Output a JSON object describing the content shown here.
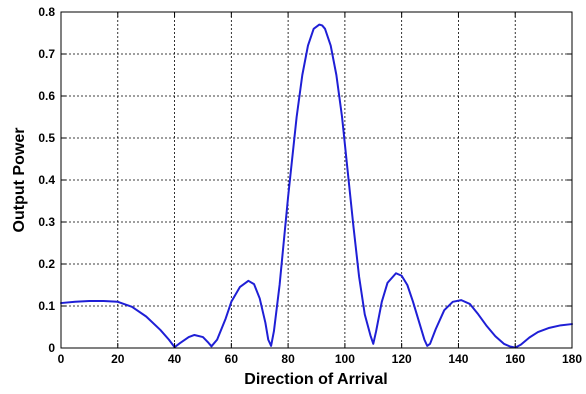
{
  "chart_data": {
    "type": "line",
    "title": "",
    "xlabel": "Direction of Arrival",
    "ylabel": "Output Power",
    "xlim": [
      0,
      180
    ],
    "ylim": [
      0,
      0.8
    ],
    "xticks": [
      0,
      20,
      40,
      60,
      80,
      100,
      120,
      140,
      160,
      180
    ],
    "yticks": [
      0,
      0.1,
      0.2,
      0.3,
      0.4,
      0.5,
      0.6,
      0.7,
      0.8
    ],
    "xtick_labels": [
      "0",
      "20",
      "40",
      "60",
      "80",
      "100",
      "120",
      "140",
      "160",
      "180"
    ],
    "ytick_labels": [
      "0",
      "0.1",
      "0.2",
      "0.3",
      "0.4",
      "0.5",
      "0.6",
      "0.7",
      "0.8"
    ],
    "grid": true,
    "series": [
      {
        "color": "#1f1fd6",
        "x": [
          0,
          5,
          10,
          15,
          20,
          25,
          30,
          35,
          38,
          40,
          42,
          45,
          47,
          50,
          52,
          53,
          55,
          58,
          60,
          63,
          66,
          68,
          70,
          72,
          73,
          74,
          75,
          77,
          80,
          83,
          85,
          87,
          89,
          91,
          92,
          93,
          95,
          97,
          99,
          101,
          103,
          105,
          107,
          109,
          110,
          111,
          113,
          115,
          118,
          120,
          122,
          124,
          126,
          128,
          129,
          130,
          132,
          135,
          138,
          141,
          144,
          147,
          150,
          153,
          156,
          158,
          160,
          162,
          165,
          168,
          172,
          176,
          180
        ],
        "y": [
          0.107,
          0.11,
          0.112,
          0.112,
          0.11,
          0.098,
          0.075,
          0.043,
          0.02,
          0.002,
          0.012,
          0.026,
          0.031,
          0.026,
          0.012,
          0.004,
          0.02,
          0.07,
          0.11,
          0.145,
          0.16,
          0.152,
          0.118,
          0.06,
          0.02,
          0.005,
          0.04,
          0.15,
          0.36,
          0.55,
          0.65,
          0.72,
          0.76,
          0.77,
          0.768,
          0.76,
          0.72,
          0.65,
          0.55,
          0.42,
          0.29,
          0.17,
          0.08,
          0.03,
          0.01,
          0.04,
          0.11,
          0.155,
          0.178,
          0.172,
          0.15,
          0.11,
          0.065,
          0.02,
          0.005,
          0.01,
          0.045,
          0.09,
          0.11,
          0.114,
          0.105,
          0.08,
          0.052,
          0.028,
          0.01,
          0.004,
          0.001,
          0.008,
          0.025,
          0.038,
          0.048,
          0.054,
          0.057
        ]
      }
    ]
  }
}
